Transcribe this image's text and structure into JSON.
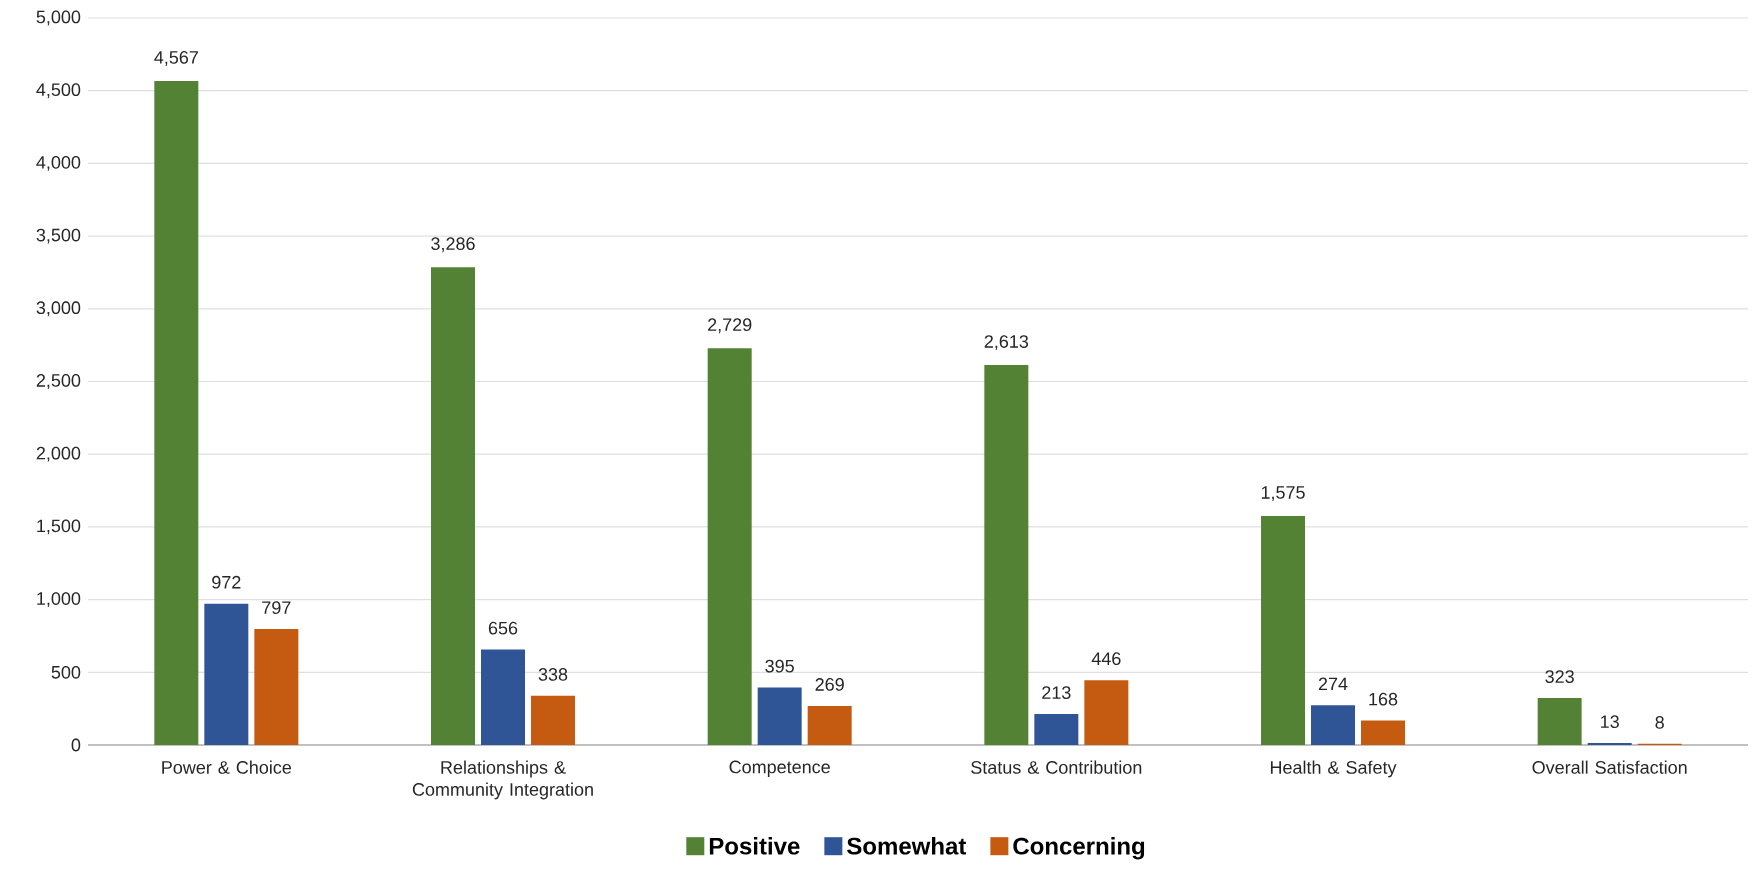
{
  "chart_data": {
    "type": "bar",
    "categories": [
      "Power & Choice",
      "Relationships & Community Integration",
      "Competence",
      "Status & Contribution",
      "Health & Safety",
      "Overall Satisfaction"
    ],
    "series": [
      {
        "name": "Positive",
        "color": "#548235",
        "values": [
          4567,
          3286,
          2729,
          2613,
          1575,
          323
        ],
        "value_labels": [
          "4,567",
          "3,286",
          "2,729",
          "2,613",
          "1,575",
          "323"
        ]
      },
      {
        "name": "Somewhat",
        "color": "#2f5597",
        "values": [
          972,
          656,
          395,
          213,
          274,
          13
        ],
        "value_labels": [
          "972",
          "656",
          "395",
          "213",
          "274",
          "13"
        ]
      },
      {
        "name": "Concerning",
        "color": "#c55a11",
        "values": [
          797,
          338,
          269,
          446,
          168,
          8
        ],
        "value_labels": [
          "797",
          "338",
          "269",
          "446",
          "168",
          "8"
        ]
      }
    ],
    "ylim": [
      0,
      5000
    ],
    "yticks": [
      0,
      500,
      {
        "value": 1000,
        "label": "1,000"
      },
      {
        "value": 1500,
        "label": "1,500"
      },
      {
        "value": 2000,
        "label": "2,000"
      },
      {
        "value": 2500,
        "label": "2,500"
      },
      {
        "value": 3000,
        "label": "3,000"
      },
      {
        "value": 3500,
        "label": "3,500"
      },
      {
        "value": 4000,
        "label": "4,000"
      },
      {
        "value": 4500,
        "label": "4,500"
      },
      {
        "value": 5000,
        "label": "5,000"
      }
    ],
    "grid": "y",
    "legend": "bottom"
  }
}
